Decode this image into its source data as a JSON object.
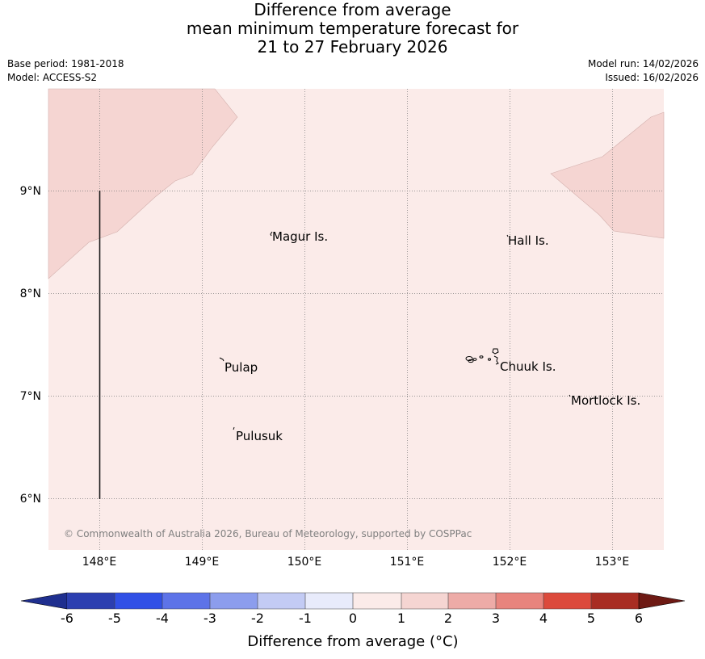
{
  "title": {
    "line1": "Difference from average",
    "line2": "mean minimum temperature forecast for",
    "line3": "21 to 27 February 2026"
  },
  "meta": {
    "base_period": "Base period: 1981-2018",
    "model": "Model: ACCESS-S2",
    "model_run": "Model run: 14/02/2026",
    "issued": "Issued: 16/02/2026"
  },
  "map": {
    "lon_labels": [
      "148°E",
      "149°E",
      "150°E",
      "151°E",
      "152°E",
      "153°E"
    ],
    "lat_labels": [
      "9°N",
      "8°N",
      "7°N",
      "6°N"
    ],
    "places": [
      "Magur Is.",
      "Hall Is.",
      "Pulap",
      "Chuuk Is.",
      "Mortlock Is.",
      "Pulusuk"
    ],
    "copyright": "© Commonwealth of Australia 2026, Bureau of Meteorology, supported by COSPPac",
    "background_color": "#fbebe9",
    "anomaly_color": "#f5d5d2"
  },
  "colorbar": {
    "ticks": [
      "-6",
      "-5",
      "-4",
      "-3",
      "-2",
      "-1",
      "0",
      "1",
      "2",
      "3",
      "4",
      "5",
      "6"
    ],
    "label": "Difference from average (°C)",
    "label_prefix": "Difference from average (",
    "label_unit": "°C",
    "label_suffix": ")",
    "colors": [
      "#1f2f8f",
      "#2c3fb0",
      "#3150e6",
      "#5d73e8",
      "#8c9ded",
      "#c3cbf4",
      "#e8ebfb",
      "#fbebe9",
      "#f5d5d2",
      "#edaba7",
      "#e8847d",
      "#dc4a3c",
      "#a82d23",
      "#6e1a14"
    ]
  }
}
